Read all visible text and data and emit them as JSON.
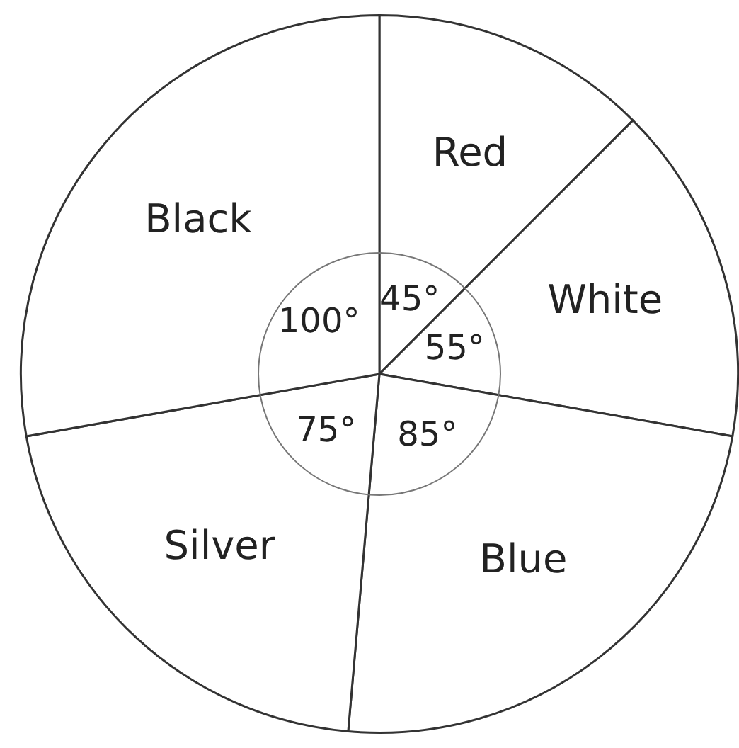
{
  "chart_data": {
    "type": "pie",
    "categories": [
      "Red",
      "White",
      "Blue",
      "Silver",
      "Black"
    ],
    "values": [
      45,
      55,
      85,
      75,
      100
    ],
    "value_labels": [
      "45°",
      "55°",
      "85°",
      "75°",
      "100°"
    ],
    "colors": [
      "#ffffff",
      "#ffffff",
      "#ffffff",
      "#ffffff",
      "#ffffff"
    ],
    "legend": false
  }
}
